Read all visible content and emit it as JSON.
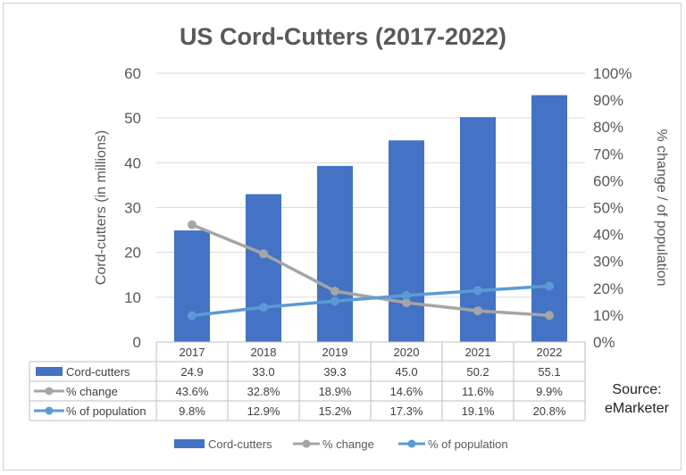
{
  "chart_data": {
    "type": "bar",
    "title": "US Cord-Cutters (2017-2022)",
    "categories": [
      "2017",
      "2018",
      "2019",
      "2020",
      "2021",
      "2022"
    ],
    "ylabel": "Cord-cutters (in millions)",
    "y2label": "% change / of population",
    "ylim": [
      0,
      60
    ],
    "yticks": [
      "0",
      "10",
      "20",
      "30",
      "40",
      "50",
      "60"
    ],
    "y2lim": [
      0,
      100
    ],
    "y2ticks": [
      "0%",
      "10%",
      "20%",
      "30%",
      "40%",
      "50%",
      "60%",
      "70%",
      "80%",
      "90%",
      "100%"
    ],
    "series": [
      {
        "name": "Cord-cutters",
        "type": "bar",
        "axis": "left",
        "color": "#4472c4",
        "values": [
          24.9,
          33.0,
          39.3,
          45.0,
          50.2,
          55.1
        ],
        "labels": [
          "24.9",
          "33.0",
          "39.3",
          "45.0",
          "50.2",
          "55.1"
        ]
      },
      {
        "name": "% change",
        "type": "line",
        "axis": "right",
        "color": "#a5a5a5",
        "values": [
          43.6,
          32.8,
          18.9,
          14.6,
          11.6,
          9.9
        ],
        "labels": [
          "43.6%",
          "32.8%",
          "18.9%",
          "14.6%",
          "11.6%",
          "9.9%"
        ]
      },
      {
        "name": "% of population",
        "type": "line",
        "axis": "right",
        "color": "#5b9bd5",
        "values": [
          9.8,
          12.9,
          15.2,
          17.3,
          19.1,
          20.8
        ],
        "labels": [
          "9.8%",
          "12.9%",
          "15.2%",
          "17.3%",
          "19.1%",
          "20.8%"
        ]
      }
    ],
    "grid": true,
    "data_table": true,
    "legend_position": "bottom"
  },
  "source_note": {
    "line1": "Source:",
    "line2": "eMarketer"
  }
}
